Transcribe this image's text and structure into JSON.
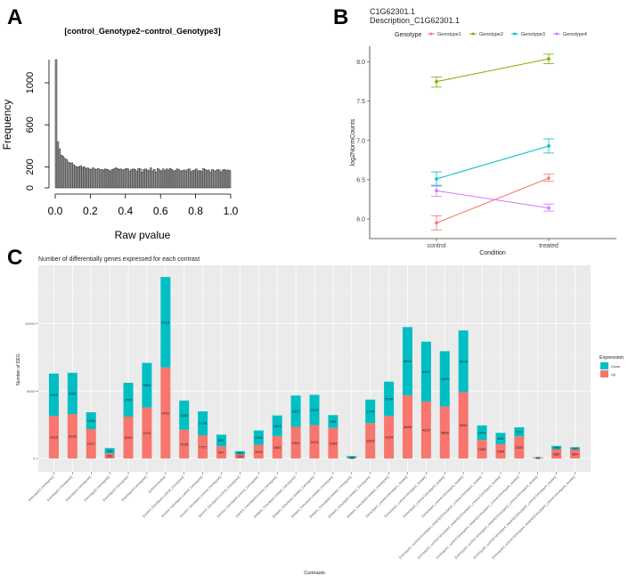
{
  "panels": {
    "a": "A",
    "b": "B",
    "c": "C"
  },
  "chart_data": [
    {
      "type": "bar",
      "subtype": "histogram",
      "title": "[control_Genotype2−control_Genotype3]",
      "xlabel": "Raw pvalue",
      "ylabel": "Frequency",
      "xlim": [
        0,
        1
      ],
      "ylim": [
        0,
        1220
      ],
      "xticks": [
        "0.0",
        "0.2",
        "0.4",
        "0.6",
        "0.8",
        "1.0"
      ],
      "yticks": [
        "0",
        "200",
        "600",
        "1000"
      ],
      "bin_width": 0.01,
      "values": [
        1220,
        440,
        370,
        310,
        300,
        280,
        270,
        245,
        235,
        240,
        220,
        205,
        200,
        200,
        210,
        195,
        200,
        185,
        190,
        180,
        175,
        190,
        180,
        175,
        185,
        170,
        175,
        170,
        180,
        175,
        170,
        160,
        175,
        180,
        190,
        185,
        175,
        180,
        170,
        175,
        185,
        180,
        160,
        175,
        180,
        175,
        160,
        185,
        180,
        150,
        175,
        180,
        170,
        165,
        190,
        160,
        175,
        150,
        185,
        170,
        160,
        180,
        165,
        180,
        170,
        185,
        175,
        160,
        165,
        180,
        175,
        160,
        165,
        170,
        160,
        175,
        180,
        155,
        165,
        170,
        180,
        160,
        165,
        155,
        185,
        175,
        165,
        170,
        150,
        175,
        165,
        160,
        175,
        170,
        150,
        170,
        175,
        165,
        170,
        165
      ],
      "bar_color": "#9a9a9a"
    },
    {
      "type": "line",
      "title": "C1G62301.1",
      "subtitle": "Description_C1G62301.1",
      "xlabel": "Condition",
      "ylabel": "log2NormCounts",
      "categories": [
        "control",
        "treated"
      ],
      "ylim": [
        5.75,
        8.2
      ],
      "yticks": [
        "6.0",
        "6.5",
        "7.0",
        "7.5",
        "8.0"
      ],
      "legend_title": "Genotype",
      "legend_position": "top",
      "series": [
        {
          "name": "Genotype1",
          "color": "#F8766D",
          "values": [
            5.95,
            6.52
          ],
          "err_low": [
            5.86,
            6.48
          ],
          "err_high": [
            6.04,
            6.57
          ]
        },
        {
          "name": "Genotype2",
          "color": "#7CAE00",
          "values": [
            7.75,
            8.04
          ],
          "err_low": [
            7.68,
            7.98
          ],
          "err_high": [
            7.81,
            8.1
          ]
        },
        {
          "name": "Genotype3",
          "color": "#00BFC4",
          "values": [
            6.51,
            6.93
          ],
          "err_low": [
            6.42,
            6.84
          ],
          "err_high": [
            6.6,
            7.02
          ]
        },
        {
          "name": "Genotype4",
          "color": "#C77CFF",
          "values": [
            6.36,
            6.14
          ],
          "err_low": [
            6.29,
            6.1
          ],
          "err_high": [
            6.43,
            6.19
          ]
        }
      ]
    },
    {
      "type": "bar",
      "subtype": "stacked",
      "title": "Number of differentially genes expressed for each contrast",
      "xlabel": "Contrasts",
      "ylabel": "Number of DEG",
      "ylim": [
        0,
        14000
      ],
      "yticks": [
        "0",
        "5000",
        "10000"
      ],
      "legend_title": "Expression",
      "legend_position": "right",
      "categories": [
        "[Genotype1-Genotype2]",
        "[Genotype1-Genotype3]",
        "[Genotype1-Genotype4]",
        "[Genotype2-Genotype3]",
        "[Genotype2-Genotype4]",
        "[Genotype3-Genotype4]",
        "[control-treated]",
        "[control_Genotype1-control_Genotype2]",
        "[control_Genotype1-control_Genotype3]",
        "[control_Genotype1-control_Genotype4]",
        "[control_Genotype2-control_Genotype3]",
        "[control_Genotype2-control_Genotype4]",
        "[control_Genotype3-control_Genotype4]",
        "[treated_Genotype1-treated_Genotype2]",
        "[treated_Genotype1-treated_Genotype3]",
        "[treated_Genotype1-treated_Genotype4]",
        "[treated_Genotype2-treated_Genotype3]",
        "[treated_Genotype2-treated_Genotype4]",
        "[treated_Genotype3-treated_Genotype4]",
        "[Genotype1_control-Genotype1_treated]",
        "[Genotype2_control-Genotype2_treated]",
        "[Genotype3_control-Genotype3_treated]",
        "[Genotype4_control-Genotype4_treated]",
        "[Genotype1_control-Genotype2_treated]-[Genotype1_control-Genotype2_treated]",
        "[Genotype1_control-Genotype3_treated]-[Genotype1_control-Genotype3_treated]",
        "[Genotype1_control-Genotype4_treated]-[Genotype1_control-Genotype4_treated]",
        "[Genotype2_control-Genotype3_treated]-[Genotype2_control-Genotype3_treated]",
        "[Genotype2_control-Genotype4_treated]-[Genotype2_control-Genotype4_treated]",
        "[Genotype3_control-Genotype4_treated]-[Genotype3_control-Genotype4_treated]"
      ],
      "series": [
        {
          "name": "Up",
          "color": "#F8766D",
          "values": [
            3153,
            3292,
            2177,
            369,
            3109,
            3779,
            6751,
            2136,
            1717,
            907,
            298,
            1016,
            1661,
            2341,
            2474,
            2264,
            44,
            2619,
            3154,
            4686,
            4229,
            3858,
            4920,
            1380,
            1054,
            1637,
            44,
            680,
            664
          ]
        },
        {
          "name": "Down",
          "color": "#00BFC4",
          "values": [
            3142,
            3061,
            1249,
            404,
            2505,
            3312,
            6713,
            2161,
            1779,
            861,
            242,
            1059,
            1529,
            2327,
            2249,
            953,
            128,
            1749,
            2546,
            5060,
            4437,
            4103,
            4578,
            1074,
            843,
            674,
            44,
            255,
            169
          ]
        }
      ]
    }
  ]
}
